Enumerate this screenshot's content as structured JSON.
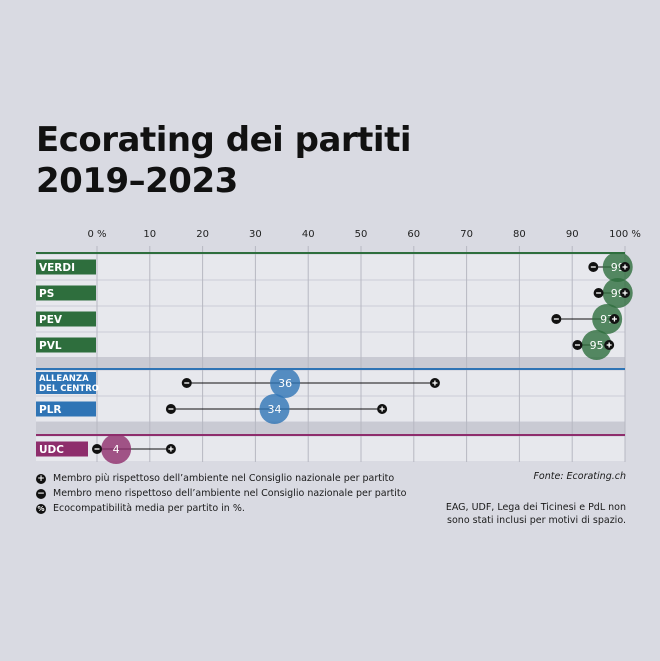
{
  "title": {
    "line1": "Ecorating dei partiti",
    "line2": "2019–2023"
  },
  "chart_data": {
    "type": "dumbbell",
    "x_ticks": [
      "0 %",
      "10",
      "20",
      "30",
      "40",
      "50",
      "60",
      "70",
      "80",
      "90",
      "100 %"
    ],
    "xlim": [
      0,
      100
    ],
    "groups": [
      {
        "name": "green-group",
        "color": "#2e6e3d",
        "parties": [
          {
            "label": "VERDI",
            "avg": 99,
            "min": 94,
            "max": 100,
            "avg_label": "99"
          },
          {
            "label": "PS",
            "avg": 99,
            "min": 95,
            "max": 100,
            "avg_label": "99"
          },
          {
            "label": "PEV",
            "avg": 97,
            "min": 87,
            "max": 98,
            "avg_label": "97"
          },
          {
            "label": "PVL",
            "avg": 95,
            "min": 91,
            "max": 97,
            "avg_label": "95"
          }
        ]
      },
      {
        "name": "center-group",
        "color": "#2f74b5",
        "parties": [
          {
            "label": "ALLEANZA\nDEL CENTRO",
            "avg": 36,
            "min": 17,
            "max": 64,
            "avg_label": "36"
          },
          {
            "label": "PLR",
            "avg": 34,
            "min": 14,
            "max": 54,
            "avg_label": "34"
          }
        ]
      },
      {
        "name": "right-group",
        "color": "#8e2d6c",
        "parties": [
          {
            "label": "UDC",
            "avg": 4,
            "min": 0,
            "max": 14,
            "avg_label": "4"
          }
        ]
      }
    ]
  },
  "source": "Fonte: Ecorating.ch",
  "legend": {
    "max_label": "Membro più rispettoso dell’ambiente nel Consiglio nazionale per partito",
    "min_label": "Membro meno rispettoso dell’ambiente nel Consiglio nazionale per partito",
    "avg_label": "Ecocompatibilità media per partito in %.",
    "max_symbol": "+",
    "min_symbol": "−",
    "avg_symbol": "%"
  },
  "footnote": {
    "line1": "EAG, UDF, Lega dei Ticinesi e PdL non",
    "line2": "sono stati inclusi per motivi di spazio."
  },
  "colors": {
    "background": "#d9dae2",
    "row_band": "#e7e8ed",
    "gap_band": "#c9cad3",
    "green": "#2e6e3d",
    "blue": "#2f74b5",
    "purple": "#8e2d6c"
  }
}
